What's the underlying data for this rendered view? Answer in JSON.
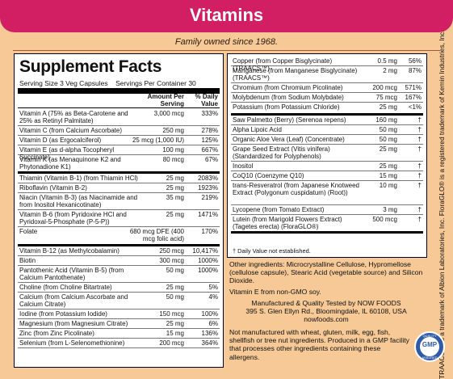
{
  "header": {
    "title": "Vitamins",
    "tagline": "Family owned since 1968."
  },
  "facts": {
    "title": "Supplement Facts",
    "serving_size": "Serving Size 3 Veg Capsules",
    "servings_per_container": "Servings Per Container 30",
    "amount_header": "Amount Per Serving",
    "dv_header": "% Daily Value",
    "left_rows": [
      {
        "name": "Vitamin A (75% as Beta-Carotene and 25% as Retinyl Palmitate)",
        "amount": "3,000 mcg",
        "dv": "333%"
      },
      {
        "name": "Vitamin C (from Calcium Ascorbate)",
        "amount": "250 mg",
        "dv": "278%"
      },
      {
        "name": "Vitamin D (as Ergocalciferol)",
        "amount": "25 mcg (1,000 IU)",
        "dv": "125%"
      },
      {
        "name": "Vitamin E (as d-alpha Tocopheryl Succinate)",
        "amount": "100 mg",
        "dv": "667%"
      },
      {
        "name": "Vitamin K (as Menaquinone K2 and Phytonadione K1)",
        "amount": "80 mcg",
        "dv": "67%"
      },
      {
        "name": "Thiamin (Vitamin B-1) (from Thiamin HCl)",
        "amount": "25 mg",
        "dv": "2083%"
      },
      {
        "name": "Riboflavin (Vitamin B-2)",
        "amount": "25 mg",
        "dv": "1923%"
      },
      {
        "name": "Niacin (Vitamin B-3) (as Niacinamide and from Inositol Hexanicotinate)",
        "amount": "35 mg",
        "dv": "219%"
      },
      {
        "name": "Vitamin B-6 (from Pyridoxine HCl and Pyridoxal-5-Phosphate (P-5-P))",
        "amount": "25 mg",
        "dv": "1471%"
      },
      {
        "name": "Folate",
        "amount": "680 mcg DFE (400 mcg folic acid)",
        "dv": "170%"
      },
      {
        "name": "Vitamin B-12 (as Methylcobalamin)",
        "amount": "250 mcg",
        "dv": "10,417%"
      },
      {
        "name": "Biotin",
        "amount": "300 mcg",
        "dv": "1000%"
      },
      {
        "name": "Pantothenic Acid (Vitamin B-5) (from Calcium Pantothenate)",
        "amount": "50 mg",
        "dv": "1000%"
      },
      {
        "name": "Choline (from Choline Bitartrate)",
        "amount": "25 mg",
        "dv": "5%"
      },
      {
        "name": "Calcium (from Calcium Ascorbate and Calcium Citrate)",
        "amount": "50 mg",
        "dv": "4%"
      },
      {
        "name": "Iodine (from Potassium Iodide)",
        "amount": "150 mcg",
        "dv": "100%"
      },
      {
        "name": "Magnesium (from Magnesium Citrate)",
        "amount": "25 mg",
        "dv": "6%"
      },
      {
        "name": "Zinc (from Zinc Picolinate)",
        "amount": "15 mg",
        "dv": "136%"
      },
      {
        "name": "Selenium (from L-Selenomethionine)",
        "amount": "200 mcg",
        "dv": "364%"
      }
    ],
    "right_rows": [
      {
        "name": "Copper (from Copper Bisglycinate) (TRAACS™)",
        "amount": "0.5 mg",
        "dv": "56%"
      },
      {
        "name": "Manganese (from Manganese Bisglycinate) (TRAACS™)",
        "amount": "2 mg",
        "dv": "87%"
      },
      {
        "name": "Chromium (from Chromium Picolinate)",
        "amount": "200 mcg",
        "dv": "571%"
      },
      {
        "name": "Molybdenum (from Sodium Molybdate)",
        "amount": "75 mcg",
        "dv": "167%"
      },
      {
        "name": "Potassium (from Potassium Chloride)",
        "amount": "25 mg",
        "dv": "<1%"
      },
      {
        "name": "Saw Palmetto (Berry) (Serenoa repens)",
        "amount": "160 mg",
        "dv": "†"
      },
      {
        "name": "Alpha Lipoic Acid",
        "amount": "50 mg",
        "dv": "†"
      },
      {
        "name": "Organic Aloe Vera (Leaf) (Concentrate)",
        "amount": "50 mg",
        "dv": "†"
      },
      {
        "name": "Grape Seed Extract (Vitis vinifera) (Standardized for Polyphenols)",
        "amount": "25 mg",
        "dv": "†"
      },
      {
        "name": "Inositol",
        "amount": "25 mg",
        "dv": "†"
      },
      {
        "name": "CoQ10 (Coenzyme Q10)",
        "amount": "15 mg",
        "dv": "†"
      },
      {
        "name": "trans-Resveratrol (from Japanese Knotweed Extract (Polygonum cuspidatum) (Root))",
        "amount": "10 mg",
        "dv": "†"
      },
      {
        "name": "Lycopene (from Tomato Extract)",
        "amount": "3 mg",
        "dv": "†"
      },
      {
        "name": "Lutein (from Marigold Flowers Extract) (Tagetes erecta) (FloraGLO®)",
        "amount": "500 mcg",
        "dv": "†"
      }
    ],
    "dv_note": "† Daily Value not established."
  },
  "other_ingredients": "Other ingredients: Microcrystalline Cellulose, Hypromellose (cellulose capsule), Stearic Acid (vegetable source) and Silicon Dioxide.",
  "vitamin_e_note": "Vitamin E from non-GMO soy.",
  "manufacturer": [
    "Manufactured & Quality Tested by NOW FOODS",
    "395 S. Glen Ellyn Rd., Bloomingdale, IL 60108, USA",
    "nowfoods.com"
  ],
  "allergen": "Not manufactured with wheat, gluten, milk, egg, fish, shellfish or tree nut ingredients. Produced in a GMP facility that processes other ingredients containing these allergens.",
  "trademark": "TRAACS™ is a trademark of Albion Laboratories, Inc. FloraGLO® is a registered trademark of Kemin Industries, Inc.",
  "gmp_badge": {
    "label": "GMP",
    "top": "QUALITY",
    "bottom": "ASSURED"
  },
  "colors": {
    "banner": "#d21e62",
    "background": "#f6c996",
    "badge": "#2e5aa8"
  }
}
